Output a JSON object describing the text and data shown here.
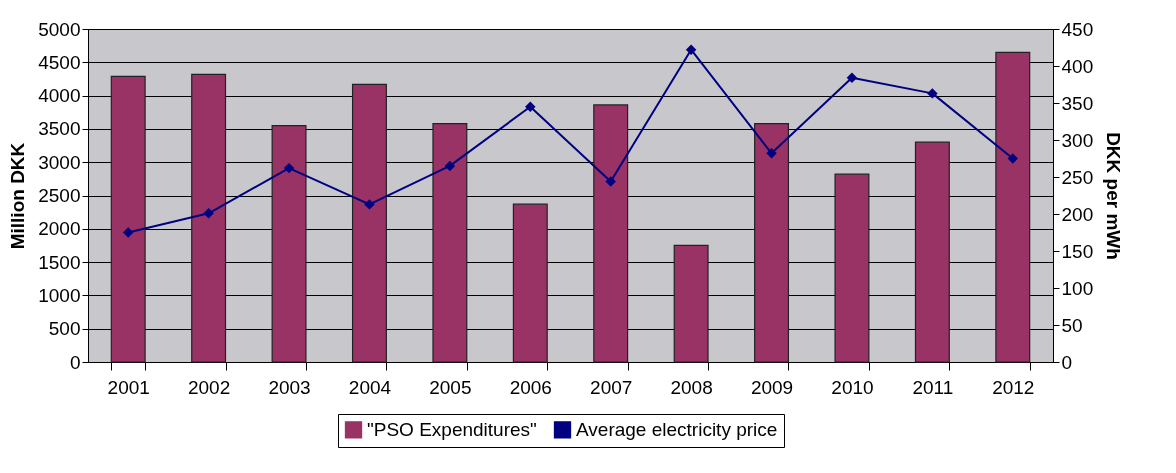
{
  "chart_data": {
    "type": "bar",
    "categories": [
      "2001",
      "2002",
      "2003",
      "2004",
      "2005",
      "2006",
      "2007",
      "2008",
      "2009",
      "2010",
      "2011",
      "2012"
    ],
    "ylabel": "Million DKK",
    "y2label": "DKK per mWh",
    "ylim": [
      0,
      5000
    ],
    "yticks": [
      0,
      500,
      1000,
      1500,
      2000,
      2500,
      3000,
      3500,
      4000,
      4500,
      5000
    ],
    "y2lim": [
      0,
      450
    ],
    "y2ticks": [
      0,
      50,
      100,
      150,
      200,
      250,
      300,
      350,
      400,
      450
    ],
    "grid": "y",
    "legend": "bottom",
    "series": [
      {
        "name": "\"PSO Expenditures\"",
        "color": "#993366",
        "values": [
          4290,
          4320,
          3550,
          4170,
          3580,
          2370,
          3860,
          1750,
          3580,
          2820,
          3300,
          4650
        ]
      },
      {
        "name": "Average electricity price",
        "type": "line",
        "axis": "y2",
        "marker": "diamond",
        "color": "#000080",
        "values": [
          175,
          201,
          262,
          213,
          265,
          345,
          244,
          422,
          282,
          384,
          363,
          275
        ]
      }
    ]
  }
}
